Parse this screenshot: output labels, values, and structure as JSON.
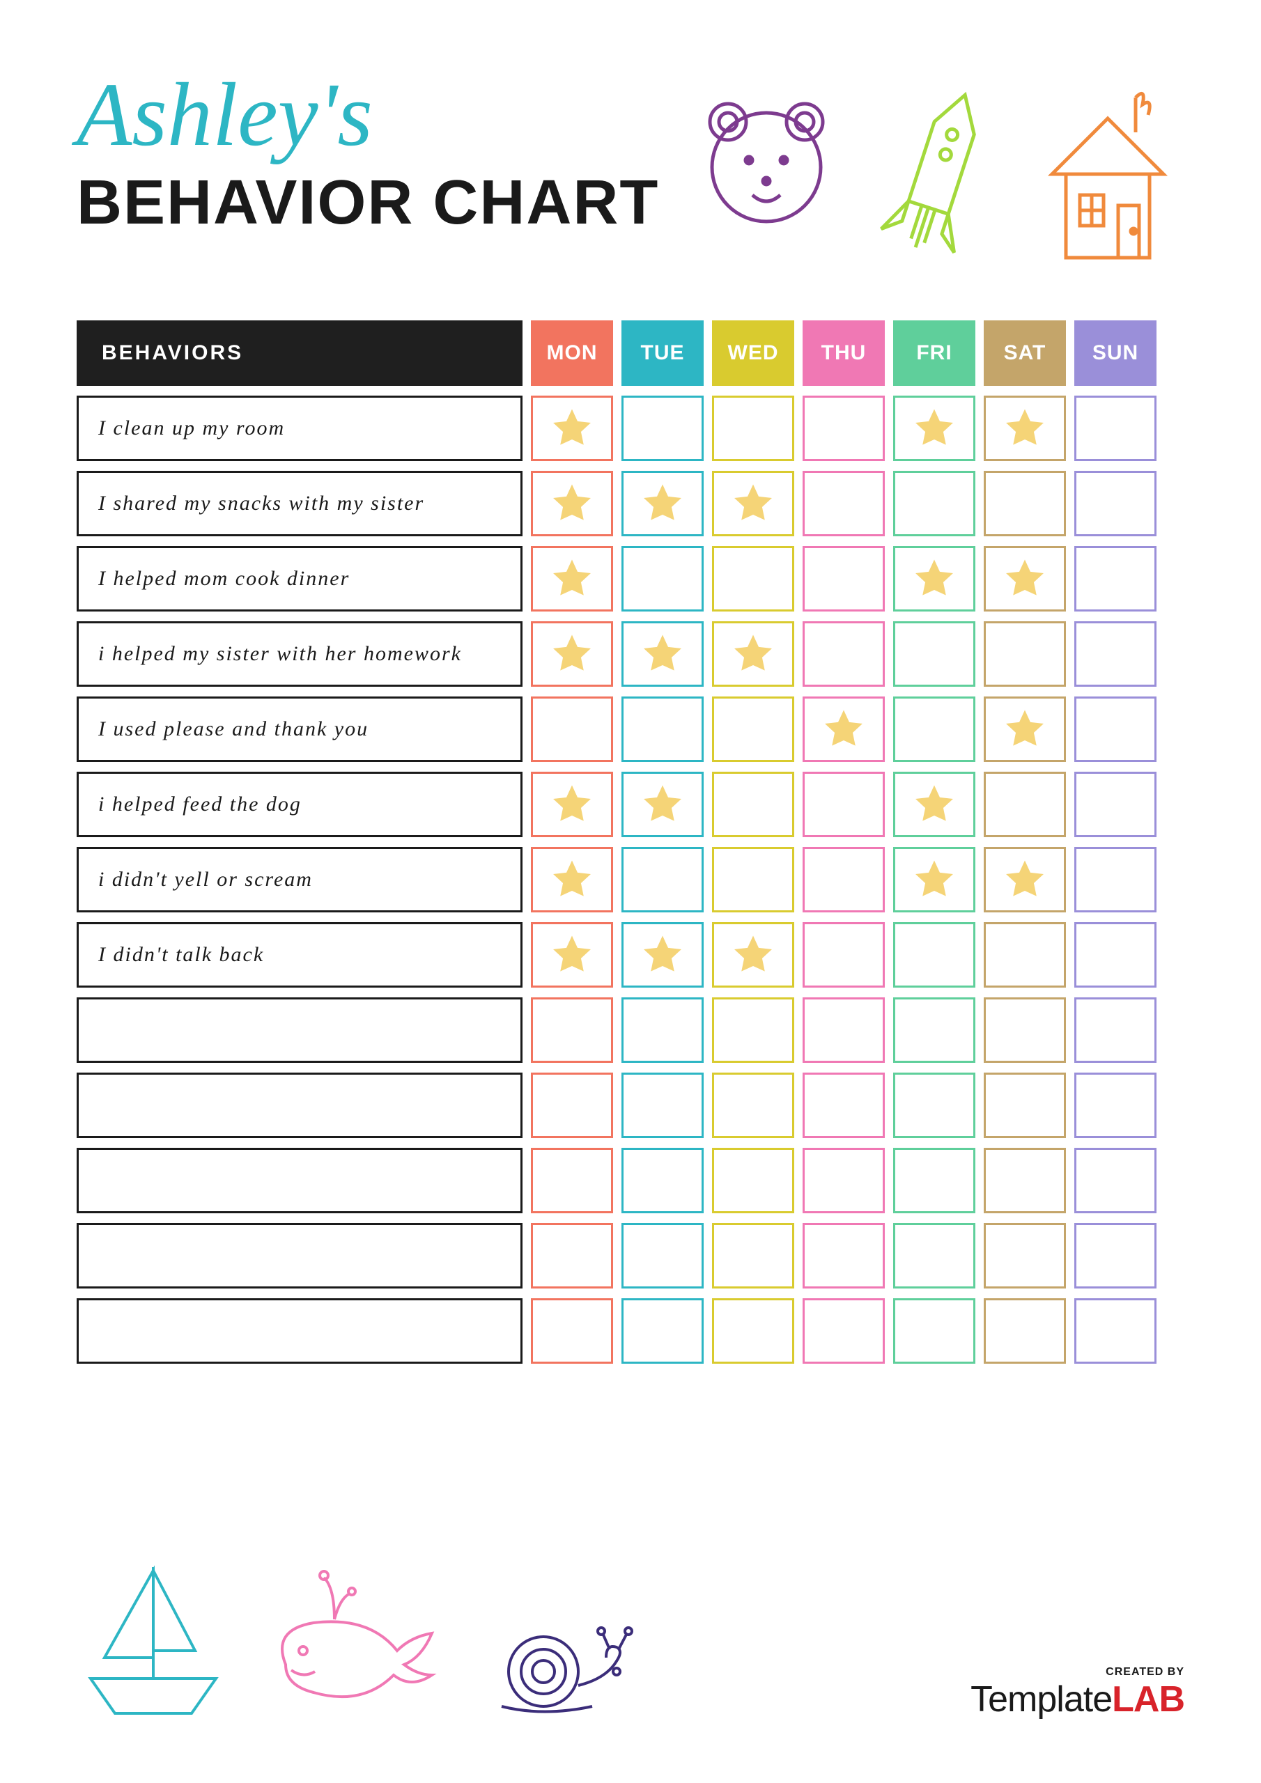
{
  "title": {
    "name": "Ashley's",
    "name_color": "#2db6c4",
    "label": "BEHAVIOR CHART",
    "label_color": "#1a1a1a"
  },
  "header": {
    "behaviors_label": "BEHAVIORS",
    "behaviors_bg": "#1f1f1f",
    "days": [
      {
        "label": "MON",
        "color": "#f2745f"
      },
      {
        "label": "TUE",
        "color": "#2db6c4"
      },
      {
        "label": "WED",
        "color": "#d9cb2f"
      },
      {
        "label": "THU",
        "color": "#f078b4"
      },
      {
        "label": "FRI",
        "color": "#5fcf9b"
      },
      {
        "label": "SAT",
        "color": "#c4a56a"
      },
      {
        "label": "SUN",
        "color": "#9a8fd9"
      }
    ]
  },
  "star_color": "#f5d477",
  "rows": [
    {
      "label": "I clean up my room",
      "stars": [
        1,
        0,
        0,
        0,
        1,
        1,
        0
      ]
    },
    {
      "label": "I shared my snacks with my sister",
      "stars": [
        1,
        1,
        1,
        0,
        0,
        0,
        0
      ]
    },
    {
      "label": "I helped mom cook dinner",
      "stars": [
        1,
        0,
        0,
        0,
        1,
        1,
        0
      ]
    },
    {
      "label": "i helped my sister with her homework",
      "stars": [
        1,
        1,
        1,
        0,
        0,
        0,
        0
      ]
    },
    {
      "label": "I used please and thank you",
      "stars": [
        0,
        0,
        0,
        1,
        0,
        1,
        0
      ]
    },
    {
      "label": "i helped feed the dog",
      "stars": [
        1,
        1,
        0,
        0,
        1,
        0,
        0
      ]
    },
    {
      "label": "i didn't yell or scream",
      "stars": [
        1,
        0,
        0,
        0,
        1,
        1,
        0
      ]
    },
    {
      "label": "I didn't talk back",
      "stars": [
        1,
        1,
        1,
        0,
        0,
        0,
        0
      ]
    },
    {
      "label": "",
      "stars": [
        0,
        0,
        0,
        0,
        0,
        0,
        0
      ]
    },
    {
      "label": "",
      "stars": [
        0,
        0,
        0,
        0,
        0,
        0,
        0
      ]
    },
    {
      "label": "",
      "stars": [
        0,
        0,
        0,
        0,
        0,
        0,
        0
      ]
    },
    {
      "label": "",
      "stars": [
        0,
        0,
        0,
        0,
        0,
        0,
        0
      ]
    },
    {
      "label": "",
      "stars": [
        0,
        0,
        0,
        0,
        0,
        0,
        0
      ]
    }
  ],
  "doodles": {
    "bear_color": "#7d3b8f",
    "rocket_color": "#a3d93c",
    "house_color": "#f08a3c",
    "boat_color": "#2db6c4",
    "whale_color": "#f078b4",
    "snail_color": "#3b2d7a"
  },
  "footer": {
    "created_by": "CREATED BY",
    "brand_a": "Template",
    "brand_b": "LAB",
    "lab_color": "#d8232a"
  }
}
